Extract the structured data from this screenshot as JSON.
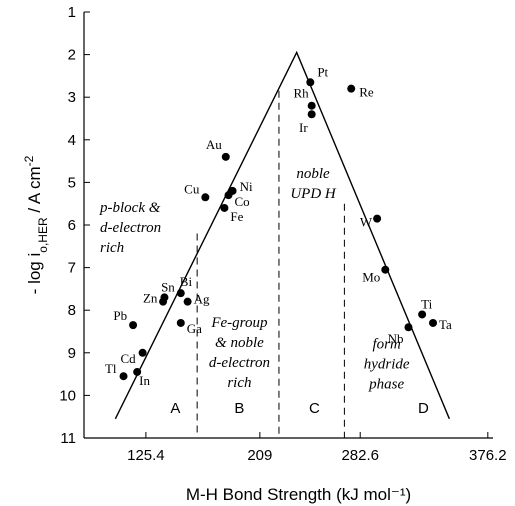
{
  "chart_data": {
    "type": "scatter",
    "xlabel": "M-H Bond Strength (kJ mol⁻¹)",
    "ylabel": "- log i",
    "ylabel_sub": "o,HER",
    "ylabel_unit": " / A cm",
    "ylabel_sup": "-2",
    "xlim": [
      80,
      380
    ],
    "ylim": [
      1,
      11
    ],
    "y_inverted": true,
    "xticks": [
      125.4,
      209,
      282.6,
      376.2
    ],
    "yticks": [
      1,
      2,
      3,
      4,
      5,
      6,
      7,
      8,
      9,
      10,
      11
    ],
    "grid": false,
    "points": [
      {
        "label": "Pt",
        "x": 246,
        "y": 2.65
      },
      {
        "label": "Re",
        "x": 276,
        "y": 2.8
      },
      {
        "label": "Rh",
        "x": 247,
        "y": 3.2
      },
      {
        "label": "Ir",
        "x": 247,
        "y": 3.4
      },
      {
        "label": "Au",
        "x": 184,
        "y": 4.4
      },
      {
        "label": "Ni",
        "x": 189,
        "y": 5.2
      },
      {
        "label": "Co",
        "x": 186,
        "y": 5.3
      },
      {
        "label": "Cu",
        "x": 169,
        "y": 5.35
      },
      {
        "label": "Fe",
        "x": 183,
        "y": 5.6
      },
      {
        "label": "W",
        "x": 295,
        "y": 5.85
      },
      {
        "label": "Mo",
        "x": 301,
        "y": 7.05
      },
      {
        "label": "Sn",
        "x": 138,
        "y": 7.8
      },
      {
        "label": "Bi",
        "x": 151,
        "y": 7.6
      },
      {
        "label": "Zn",
        "x": 139,
        "y": 7.7
      },
      {
        "label": "Ag",
        "x": 156,
        "y": 7.8
      },
      {
        "label": "Ti",
        "x": 328,
        "y": 8.1
      },
      {
        "label": "Ta",
        "x": 336,
        "y": 8.3
      },
      {
        "label": "Ga",
        "x": 151,
        "y": 8.3
      },
      {
        "label": "Pb",
        "x": 116,
        "y": 8.35
      },
      {
        "label": "Nb",
        "x": 318,
        "y": 8.4
      },
      {
        "label": "Cd",
        "x": 123,
        "y": 9.0
      },
      {
        "label": "Tl",
        "x": 109,
        "y": 9.55
      },
      {
        "label": "In",
        "x": 119,
        "y": 9.45
      }
    ],
    "volcano_line": [
      {
        "x": 103,
        "y": 10.55
      },
      {
        "x": 236,
        "y": 1.95
      },
      {
        "x": 348,
        "y": 10.55
      }
    ],
    "region_dividers": [
      {
        "x": 163,
        "y_top": 6.2
      },
      {
        "x": 223,
        "y_top": 2.85
      },
      {
        "x": 271,
        "y_top": 5.5
      }
    ],
    "zone_letters": [
      {
        "text": "A",
        "x": 147,
        "y": 10.3
      },
      {
        "text": "B",
        "x": 194,
        "y": 10.3
      },
      {
        "text": "C",
        "x": 249,
        "y": 10.3
      },
      {
        "text": "D",
        "x": 329,
        "y": 10.3
      }
    ],
    "region_annotations": [
      {
        "lines": [
          "p-block &",
          "d-electron",
          "rich"
        ],
        "x": 84,
        "y": 5.7
      },
      {
        "lines": [
          "noble",
          "UPD H"
        ],
        "x": 248,
        "y": 4.9
      },
      {
        "lines": [
          "Fe-group",
          "& noble",
          "d-electron",
          "rich"
        ],
        "x": 194,
        "y": 8.4
      },
      {
        "lines": [
          "form",
          "hydride",
          "phase"
        ],
        "x": 302,
        "y": 8.9
      }
    ]
  }
}
